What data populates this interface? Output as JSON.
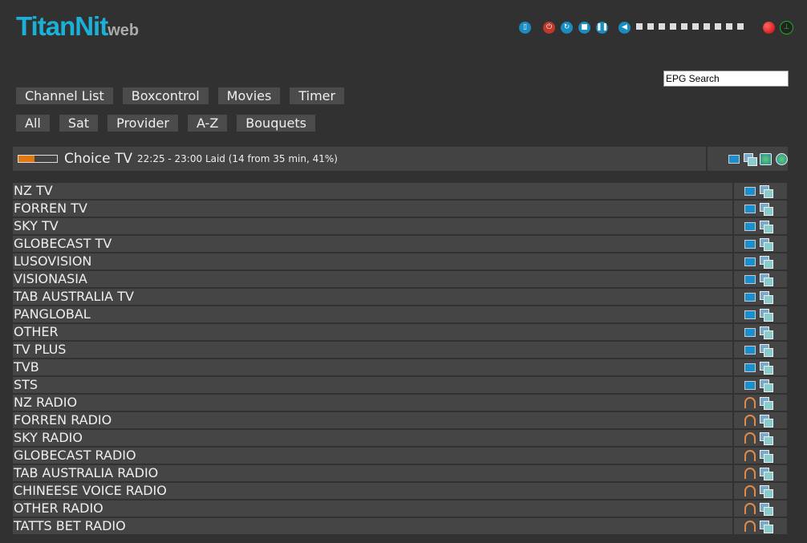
{
  "logo": {
    "main": "TitanNit",
    "sub": "web"
  },
  "controls": {
    "icons": [
      "remote-icon",
      "power-icon",
      "restart-icon",
      "stop-icon",
      "pause-icon",
      "volume-icon"
    ],
    "volume_steps": 10,
    "volume_level": 0
  },
  "epg_search": {
    "value": "EPG Search"
  },
  "main_nav": [
    "Channel List",
    "Boxcontrol",
    "Movies",
    "Timer"
  ],
  "sub_nav": [
    "All",
    "Sat",
    "Provider",
    "A-Z",
    "Bouquets"
  ],
  "current": {
    "channel": "Choice TV",
    "info": "22:25 - 23:00 Laid (14 from 35 min, 41%)",
    "progress_percent": 41,
    "progress_color": "#e07a10"
  },
  "bouquets": [
    {
      "name": "NZ TV",
      "type": "tv"
    },
    {
      "name": "FORREN TV",
      "type": "tv"
    },
    {
      "name": "SKY TV",
      "type": "tv"
    },
    {
      "name": "GLOBECAST TV",
      "type": "tv"
    },
    {
      "name": "LUSOVISION",
      "type": "tv"
    },
    {
      "name": "VISIONASIA",
      "type": "tv"
    },
    {
      "name": "TAB AUSTRALIA TV",
      "type": "tv"
    },
    {
      "name": "PANGLOBAL",
      "type": "tv"
    },
    {
      "name": "OTHER",
      "type": "tv"
    },
    {
      "name": "TV PLUS",
      "type": "tv"
    },
    {
      "name": "TVB",
      "type": "tv"
    },
    {
      "name": "STS",
      "type": "tv"
    },
    {
      "name": "NZ RADIO",
      "type": "radio"
    },
    {
      "name": "FORREN RADIO",
      "type": "radio"
    },
    {
      "name": "SKY RADIO",
      "type": "radio"
    },
    {
      "name": "GLOBECAST RADIO",
      "type": "radio"
    },
    {
      "name": "TAB AUSTRALIA RADIO",
      "type": "radio"
    },
    {
      "name": "CHINEESE VOICE RADIO",
      "type": "radio"
    },
    {
      "name": "OTHER RADIO",
      "type": "radio"
    },
    {
      "name": "TATTS BET RADIO",
      "type": "radio"
    }
  ]
}
